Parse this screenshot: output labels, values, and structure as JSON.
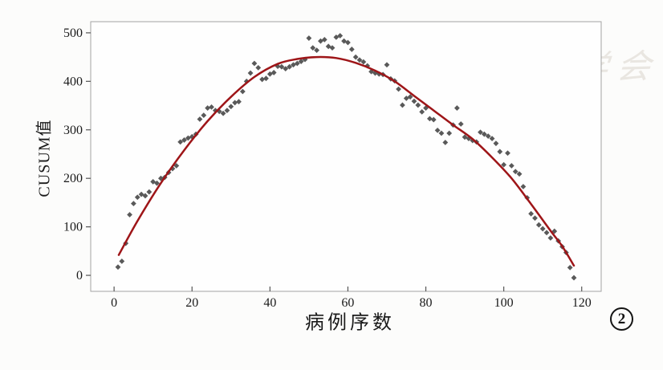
{
  "figure": {
    "badge": "2",
    "watermark": {
      "logo": "cma-seal-icon",
      "text": "中华医学会"
    }
  },
  "labels": {
    "y_axis": "CUSUM值",
    "x_axis": "病例序数"
  },
  "chart_data": {
    "type": "scatter",
    "title": "",
    "xlabel": "病例序数",
    "ylabel": "CUSUM值",
    "xlim": [
      -6,
      125
    ],
    "ylim": [
      -33,
      523
    ],
    "xticks": [
      0,
      20,
      40,
      60,
      80,
      100,
      120
    ],
    "yticks": [
      0,
      100,
      200,
      300,
      400,
      500
    ],
    "grid": false,
    "legend": "none",
    "colors": {
      "points": "#595959",
      "curve": "#9e1518",
      "frame": "#a3a3a3",
      "tick_text": "#1a1a1a",
      "watermark": "#e9e6e1"
    },
    "series": [
      {
        "name": "CUSUM values",
        "kind": "scatter",
        "marker": "diamond",
        "color": "#595959",
        "points": [
          [
            1,
            17
          ],
          [
            2,
            29
          ],
          [
            3,
            66
          ],
          [
            4,
            125
          ],
          [
            5,
            148
          ],
          [
            6,
            161
          ],
          [
            7,
            167
          ],
          [
            8,
            164
          ],
          [
            9,
            172
          ],
          [
            10,
            193
          ],
          [
            11,
            190
          ],
          [
            12,
            200
          ],
          [
            13,
            202
          ],
          [
            14,
            212
          ],
          [
            15,
            220
          ],
          [
            16,
            226
          ],
          [
            17,
            275
          ],
          [
            18,
            279
          ],
          [
            19,
            283
          ],
          [
            20,
            286
          ],
          [
            21,
            291
          ],
          [
            22,
            322
          ],
          [
            23,
            330
          ],
          [
            24,
            345
          ],
          [
            25,
            347
          ],
          [
            26,
            340
          ],
          [
            27,
            338
          ],
          [
            28,
            334
          ],
          [
            29,
            340
          ],
          [
            30,
            348
          ],
          [
            31,
            356
          ],
          [
            32,
            358
          ],
          [
            33,
            379
          ],
          [
            34,
            400
          ],
          [
            35,
            417
          ],
          [
            36,
            437
          ],
          [
            37,
            428
          ],
          [
            38,
            404
          ],
          [
            39,
            406
          ],
          [
            40,
            415
          ],
          [
            41,
            418
          ],
          [
            42,
            431
          ],
          [
            43,
            430
          ],
          [
            44,
            426
          ],
          [
            45,
            430
          ],
          [
            46,
            434
          ],
          [
            47,
            437
          ],
          [
            48,
            441
          ],
          [
            49,
            445
          ],
          [
            50,
            489
          ],
          [
            51,
            469
          ],
          [
            52,
            464
          ],
          [
            53,
            483
          ],
          [
            54,
            486
          ],
          [
            55,
            472
          ],
          [
            56,
            469
          ],
          [
            57,
            491
          ],
          [
            58,
            494
          ],
          [
            59,
            483
          ],
          [
            60,
            480
          ],
          [
            61,
            466
          ],
          [
            62,
            450
          ],
          [
            63,
            444
          ],
          [
            64,
            440
          ],
          [
            65,
            432
          ],
          [
            66,
            420
          ],
          [
            67,
            417
          ],
          [
            68,
            415
          ],
          [
            69,
            414
          ],
          [
            70,
            434
          ],
          [
            71,
            405
          ],
          [
            72,
            401
          ],
          [
            73,
            384
          ],
          [
            74,
            351
          ],
          [
            75,
            365
          ],
          [
            76,
            368
          ],
          [
            77,
            359
          ],
          [
            78,
            351
          ],
          [
            79,
            337
          ],
          [
            80,
            345
          ],
          [
            81,
            323
          ],
          [
            82,
            321
          ],
          [
            83,
            299
          ],
          [
            84,
            293
          ],
          [
            85,
            274
          ],
          [
            86,
            293
          ],
          [
            87,
            310
          ],
          [
            88,
            345
          ],
          [
            89,
            312
          ],
          [
            90,
            285
          ],
          [
            91,
            282
          ],
          [
            92,
            278
          ],
          [
            93,
            275
          ],
          [
            94,
            295
          ],
          [
            95,
            291
          ],
          [
            96,
            287
          ],
          [
            97,
            282
          ],
          [
            98,
            272
          ],
          [
            99,
            255
          ],
          [
            100,
            228
          ],
          [
            101,
            252
          ],
          [
            102,
            226
          ],
          [
            103,
            214
          ],
          [
            104,
            209
          ],
          [
            105,
            183
          ],
          [
            106,
            160
          ],
          [
            107,
            127
          ],
          [
            108,
            118
          ],
          [
            109,
            104
          ],
          [
            110,
            96
          ],
          [
            111,
            88
          ],
          [
            112,
            77
          ],
          [
            113,
            91
          ],
          [
            114,
            71
          ],
          [
            115,
            59
          ],
          [
            116,
            47
          ],
          [
            117,
            16
          ],
          [
            118,
            -5
          ]
        ]
      },
      {
        "name": "fitted curve",
        "kind": "line",
        "color": "#9e1518",
        "points": [
          [
            1.2,
            42
          ],
          [
            6,
            112
          ],
          [
            12,
            190
          ],
          [
            18,
            258
          ],
          [
            24,
            318
          ],
          [
            30,
            368
          ],
          [
            36,
            409
          ],
          [
            42,
            436
          ],
          [
            47,
            446
          ],
          [
            52,
            450
          ],
          [
            57,
            448
          ],
          [
            62,
            438
          ],
          [
            67,
            422
          ],
          [
            72,
            400
          ],
          [
            77,
            370
          ],
          [
            82,
            340
          ],
          [
            87,
            310
          ],
          [
            92,
            281
          ],
          [
            97,
            243
          ],
          [
            102,
            200
          ],
          [
            107,
            147
          ],
          [
            112,
            92
          ],
          [
            115,
            60
          ],
          [
            118,
            20
          ]
        ]
      }
    ]
  }
}
